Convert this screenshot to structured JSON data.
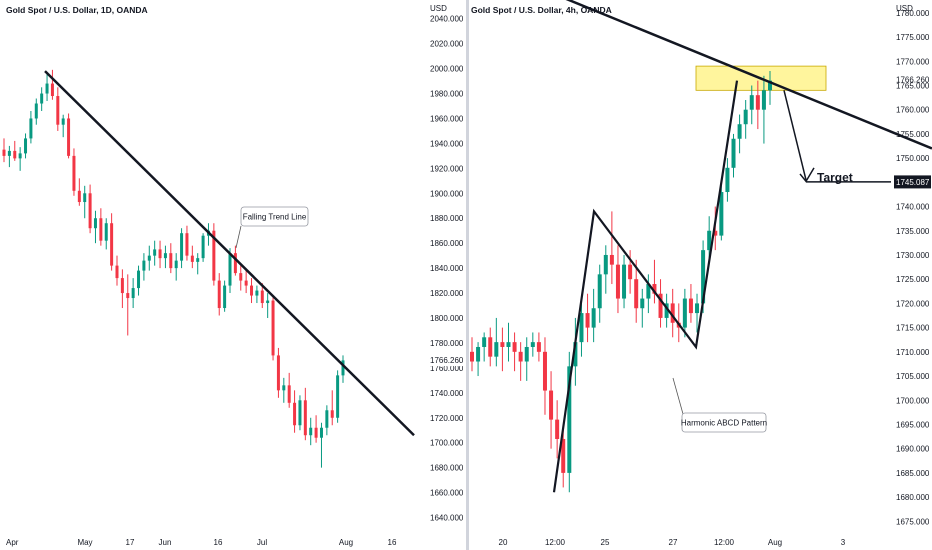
{
  "chart_data": [
    {
      "type": "candlestick",
      "title": "Gold Spot / U.S. Dollar, 1D, OANDA",
      "currency": "USD",
      "y_ticks": [
        "2040.000",
        "2020.000",
        "2000.000",
        "1980.000",
        "1960.000",
        "1940.000",
        "1920.000",
        "1900.000",
        "1880.000",
        "1860.000",
        "1840.000",
        "1820.000",
        "1800.000",
        "1780.000",
        "1760.000",
        "1740.000",
        "1720.000",
        "1700.000",
        "1680.000",
        "1660.000",
        "1640.000"
      ],
      "x_ticks": [
        "Apr",
        "May",
        "17",
        "Jun",
        "16",
        "Jul",
        "Aug",
        "16"
      ],
      "ylim": [
        1630,
        2055
      ],
      "last_price_label": "1766.260",
      "annotation": "Falling Trend Line",
      "trend_line": {
        "start": [
          "Apr",
          1998
        ],
        "end": [
          "Aug",
          1706
        ]
      },
      "candles": [
        {
          "o": 1935,
          "h": 1944,
          "l": 1925,
          "c": 1930
        },
        {
          "o": 1930,
          "h": 1938,
          "l": 1921,
          "c": 1934
        },
        {
          "o": 1934,
          "h": 1942,
          "l": 1926,
          "c": 1928
        },
        {
          "o": 1928,
          "h": 1937,
          "l": 1918,
          "c": 1932
        },
        {
          "o": 1932,
          "h": 1948,
          "l": 1928,
          "c": 1944
        },
        {
          "o": 1944,
          "h": 1966,
          "l": 1940,
          "c": 1960
        },
        {
          "o": 1960,
          "h": 1976,
          "l": 1955,
          "c": 1972
        },
        {
          "o": 1972,
          "h": 1985,
          "l": 1966,
          "c": 1980
        },
        {
          "o": 1980,
          "h": 1996,
          "l": 1974,
          "c": 1988
        },
        {
          "o": 1988,
          "h": 1999,
          "l": 1975,
          "c": 1978
        },
        {
          "o": 1978,
          "h": 1985,
          "l": 1950,
          "c": 1955
        },
        {
          "o": 1955,
          "h": 1963,
          "l": 1945,
          "c": 1960
        },
        {
          "o": 1960,
          "h": 1964,
          "l": 1928,
          "c": 1930
        },
        {
          "o": 1930,
          "h": 1936,
          "l": 1898,
          "c": 1902
        },
        {
          "o": 1902,
          "h": 1912,
          "l": 1890,
          "c": 1893
        },
        {
          "o": 1893,
          "h": 1906,
          "l": 1880,
          "c": 1900
        },
        {
          "o": 1900,
          "h": 1907,
          "l": 1868,
          "c": 1872
        },
        {
          "o": 1872,
          "h": 1886,
          "l": 1860,
          "c": 1880
        },
        {
          "o": 1880,
          "h": 1888,
          "l": 1858,
          "c": 1862
        },
        {
          "o": 1862,
          "h": 1880,
          "l": 1855,
          "c": 1876
        },
        {
          "o": 1876,
          "h": 1884,
          "l": 1838,
          "c": 1842
        },
        {
          "o": 1842,
          "h": 1850,
          "l": 1826,
          "c": 1832
        },
        {
          "o": 1832,
          "h": 1839,
          "l": 1808,
          "c": 1820
        },
        {
          "o": 1820,
          "h": 1835,
          "l": 1786,
          "c": 1816
        },
        {
          "o": 1816,
          "h": 1832,
          "l": 1808,
          "c": 1824
        },
        {
          "o": 1824,
          "h": 1842,
          "l": 1818,
          "c": 1838
        },
        {
          "o": 1838,
          "h": 1852,
          "l": 1830,
          "c": 1846
        },
        {
          "o": 1846,
          "h": 1858,
          "l": 1838,
          "c": 1850
        },
        {
          "o": 1850,
          "h": 1862,
          "l": 1842,
          "c": 1855
        },
        {
          "o": 1855,
          "h": 1862,
          "l": 1840,
          "c": 1848
        },
        {
          "o": 1848,
          "h": 1858,
          "l": 1840,
          "c": 1852
        },
        {
          "o": 1852,
          "h": 1860,
          "l": 1836,
          "c": 1840
        },
        {
          "o": 1840,
          "h": 1852,
          "l": 1830,
          "c": 1846
        },
        {
          "o": 1846,
          "h": 1872,
          "l": 1840,
          "c": 1868
        },
        {
          "o": 1868,
          "h": 1874,
          "l": 1846,
          "c": 1850
        },
        {
          "o": 1850,
          "h": 1858,
          "l": 1840,
          "c": 1845
        },
        {
          "o": 1845,
          "h": 1852,
          "l": 1835,
          "c": 1848
        },
        {
          "o": 1848,
          "h": 1868,
          "l": 1845,
          "c": 1866
        },
        {
          "o": 1866,
          "h": 1876,
          "l": 1858,
          "c": 1870
        },
        {
          "o": 1870,
          "h": 1876,
          "l": 1826,
          "c": 1830
        },
        {
          "o": 1830,
          "h": 1836,
          "l": 1802,
          "c": 1808
        },
        {
          "o": 1808,
          "h": 1830,
          "l": 1805,
          "c": 1826
        },
        {
          "o": 1826,
          "h": 1856,
          "l": 1820,
          "c": 1852
        },
        {
          "o": 1852,
          "h": 1858,
          "l": 1834,
          "c": 1836
        },
        {
          "o": 1836,
          "h": 1842,
          "l": 1822,
          "c": 1830
        },
        {
          "o": 1830,
          "h": 1838,
          "l": 1820,
          "c": 1826
        },
        {
          "o": 1826,
          "h": 1832,
          "l": 1812,
          "c": 1818
        },
        {
          "o": 1818,
          "h": 1826,
          "l": 1812,
          "c": 1822
        },
        {
          "o": 1822,
          "h": 1828,
          "l": 1808,
          "c": 1812
        },
        {
          "o": 1812,
          "h": 1820,
          "l": 1800,
          "c": 1814
        },
        {
          "o": 1814,
          "h": 1818,
          "l": 1766,
          "c": 1770
        },
        {
          "o": 1770,
          "h": 1776,
          "l": 1736,
          "c": 1742
        },
        {
          "o": 1742,
          "h": 1752,
          "l": 1732,
          "c": 1746
        },
        {
          "o": 1746,
          "h": 1756,
          "l": 1728,
          "c": 1732
        },
        {
          "o": 1732,
          "h": 1742,
          "l": 1708,
          "c": 1714
        },
        {
          "o": 1714,
          "h": 1738,
          "l": 1710,
          "c": 1734
        },
        {
          "o": 1734,
          "h": 1744,
          "l": 1702,
          "c": 1706
        },
        {
          "o": 1706,
          "h": 1720,
          "l": 1698,
          "c": 1712
        },
        {
          "o": 1712,
          "h": 1722,
          "l": 1700,
          "c": 1704
        },
        {
          "o": 1704,
          "h": 1716,
          "l": 1680,
          "c": 1712
        },
        {
          "o": 1712,
          "h": 1730,
          "l": 1706,
          "c": 1726
        },
        {
          "o": 1726,
          "h": 1742,
          "l": 1714,
          "c": 1720
        },
        {
          "o": 1720,
          "h": 1758,
          "l": 1716,
          "c": 1754
        },
        {
          "o": 1754,
          "h": 1770,
          "l": 1748,
          "c": 1766
        }
      ]
    },
    {
      "type": "candlestick",
      "title": "Gold Spot / U.S. Dollar, 4h, OANDA",
      "currency": "USD",
      "y_ticks": [
        "1780.000",
        "1775.000",
        "1770.000",
        "1766.260",
        "1765.000",
        "1760.000",
        "1755.000",
        "1750.000",
        "1745.087",
        "1740.000",
        "1735.000",
        "1730.000",
        "1725.000",
        "1720.000",
        "1715.000",
        "1710.000",
        "1705.000",
        "1700.000",
        "1695.000",
        "1690.000",
        "1685.000",
        "1680.000",
        "1675.000"
      ],
      "x_ticks": [
        "20",
        "12:00",
        "25",
        "27",
        "12:00",
        "Aug",
        "3"
      ],
      "ylim": [
        1673,
        1781
      ],
      "last_price_label": "1766.260",
      "target_price_label": "1745.087",
      "target_label": "Target",
      "annotation": "Harmonic ABCD Pattern",
      "abcd_points": [
        [
          1681,
          1
        ],
        [
          1739,
          1
        ],
        [
          1711,
          1
        ],
        [
          1766,
          1
        ]
      ],
      "resistance_line": {
        "start": 1781,
        "end": 1752
      },
      "supply_zone": [
        1764,
        1769
      ],
      "candles": [
        {
          "o": 1710,
          "h": 1713,
          "l": 1706,
          "c": 1708
        },
        {
          "o": 1708,
          "h": 1712,
          "l": 1705,
          "c": 1711
        },
        {
          "o": 1711,
          "h": 1714,
          "l": 1708,
          "c": 1713
        },
        {
          "o": 1713,
          "h": 1715,
          "l": 1707,
          "c": 1709
        },
        {
          "o": 1709,
          "h": 1717,
          "l": 1707,
          "c": 1712
        },
        {
          "o": 1712,
          "h": 1715,
          "l": 1706,
          "c": 1711
        },
        {
          "o": 1711,
          "h": 1716,
          "l": 1708,
          "c": 1712
        },
        {
          "o": 1712,
          "h": 1714,
          "l": 1706,
          "c": 1710
        },
        {
          "o": 1710,
          "h": 1712,
          "l": 1704,
          "c": 1708
        },
        {
          "o": 1708,
          "h": 1713,
          "l": 1704,
          "c": 1711
        },
        {
          "o": 1711,
          "h": 1714,
          "l": 1709,
          "c": 1712
        },
        {
          "o": 1712,
          "h": 1714,
          "l": 1708,
          "c": 1710
        },
        {
          "o": 1710,
          "h": 1713,
          "l": 1697,
          "c": 1702
        },
        {
          "o": 1702,
          "h": 1706,
          "l": 1690,
          "c": 1696
        },
        {
          "o": 1696,
          "h": 1700,
          "l": 1688,
          "c": 1692
        },
        {
          "o": 1692,
          "h": 1695,
          "l": 1682,
          "c": 1685
        },
        {
          "o": 1685,
          "h": 1710,
          "l": 1681,
          "c": 1707
        },
        {
          "o": 1707,
          "h": 1717,
          "l": 1703,
          "c": 1712
        },
        {
          "o": 1712,
          "h": 1720,
          "l": 1709,
          "c": 1718
        },
        {
          "o": 1718,
          "h": 1722,
          "l": 1712,
          "c": 1715
        },
        {
          "o": 1715,
          "h": 1723,
          "l": 1712,
          "c": 1719
        },
        {
          "o": 1719,
          "h": 1728,
          "l": 1716,
          "c": 1726
        },
        {
          "o": 1726,
          "h": 1732,
          "l": 1722,
          "c": 1730
        },
        {
          "o": 1730,
          "h": 1739,
          "l": 1724,
          "c": 1728
        },
        {
          "o": 1728,
          "h": 1732,
          "l": 1718,
          "c": 1721
        },
        {
          "o": 1721,
          "h": 1730,
          "l": 1719,
          "c": 1728
        },
        {
          "o": 1728,
          "h": 1731,
          "l": 1722,
          "c": 1725
        },
        {
          "o": 1725,
          "h": 1729,
          "l": 1716,
          "c": 1719
        },
        {
          "o": 1719,
          "h": 1723,
          "l": 1715,
          "c": 1721
        },
        {
          "o": 1721,
          "h": 1726,
          "l": 1718,
          "c": 1724
        },
        {
          "o": 1724,
          "h": 1729,
          "l": 1720,
          "c": 1722
        },
        {
          "o": 1722,
          "h": 1725,
          "l": 1715,
          "c": 1717
        },
        {
          "o": 1717,
          "h": 1722,
          "l": 1715,
          "c": 1720
        },
        {
          "o": 1720,
          "h": 1723,
          "l": 1713,
          "c": 1716
        },
        {
          "o": 1716,
          "h": 1720,
          "l": 1712,
          "c": 1715
        },
        {
          "o": 1715,
          "h": 1723,
          "l": 1713,
          "c": 1721
        },
        {
          "o": 1721,
          "h": 1724,
          "l": 1716,
          "c": 1718
        },
        {
          "o": 1718,
          "h": 1722,
          "l": 1714,
          "c": 1720
        },
        {
          "o": 1720,
          "h": 1733,
          "l": 1718,
          "c": 1731
        },
        {
          "o": 1731,
          "h": 1738,
          "l": 1729,
          "c": 1735
        },
        {
          "o": 1735,
          "h": 1740,
          "l": 1731,
          "c": 1734
        },
        {
          "o": 1734,
          "h": 1745,
          "l": 1733,
          "c": 1743
        },
        {
          "o": 1743,
          "h": 1750,
          "l": 1741,
          "c": 1748
        },
        {
          "o": 1748,
          "h": 1755,
          "l": 1746,
          "c": 1754
        },
        {
          "o": 1754,
          "h": 1759,
          "l": 1751,
          "c": 1757
        },
        {
          "o": 1757,
          "h": 1762,
          "l": 1754,
          "c": 1760
        },
        {
          "o": 1760,
          "h": 1765,
          "l": 1757,
          "c": 1763
        },
        {
          "o": 1763,
          "h": 1766,
          "l": 1756,
          "c": 1760
        },
        {
          "o": 1760,
          "h": 1767,
          "l": 1753,
          "c": 1764
        },
        {
          "o": 1764,
          "h": 1768,
          "l": 1761,
          "c": 1766
        }
      ]
    }
  ],
  "colors": {
    "up": "#089981",
    "down": "#f23645",
    "line": "#131722",
    "zone": "#fff59d",
    "zone_border": "#c8a800",
    "label_bg": "#131722"
  }
}
